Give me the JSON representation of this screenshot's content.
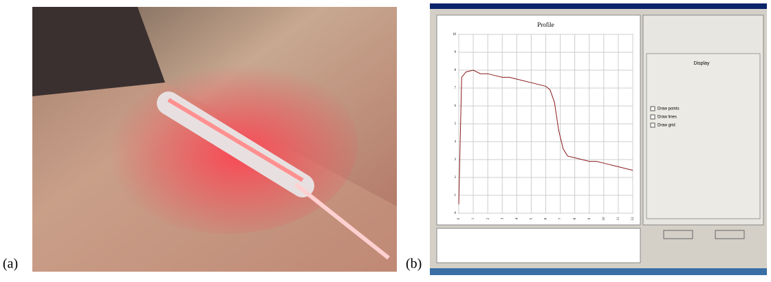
{
  "labels": {
    "a": "(a)",
    "b": "(b)"
  },
  "chart_data": {
    "type": "line",
    "title": "Profile",
    "x": [
      0,
      0.2,
      0.5,
      1,
      1.5,
      2,
      2.5,
      3,
      3.5,
      4,
      4.5,
      5,
      5.5,
      6,
      6.3,
      6.6,
      6.9,
      7.2,
      7.5,
      8,
      8.5,
      9,
      9.5,
      10,
      10.5,
      11,
      11.5,
      12
    ],
    "series": [
      {
        "color": "#8b1a1a",
        "values": [
          0.5,
          7.6,
          7.9,
          8.0,
          7.8,
          7.8,
          7.7,
          7.6,
          7.6,
          7.5,
          7.4,
          7.3,
          7.2,
          7.1,
          6.9,
          6.2,
          4.6,
          3.6,
          3.2,
          3.1,
          3.0,
          2.9,
          2.9,
          2.8,
          2.7,
          2.6,
          2.5,
          2.4
        ]
      }
    ],
    "xlim": [
      0,
      12
    ],
    "xticks": [
      0,
      1,
      2,
      3,
      4,
      5,
      6,
      7,
      8,
      9,
      10,
      11,
      12
    ],
    "ylim": [
      0,
      10
    ],
    "yticks": [
      0,
      1,
      2,
      3,
      4,
      5,
      6,
      7,
      8,
      9,
      10
    ],
    "grid": true
  },
  "panel": {
    "tab": "Display",
    "options": [
      "Draw points",
      "Draw lines",
      "Draw grid"
    ]
  }
}
